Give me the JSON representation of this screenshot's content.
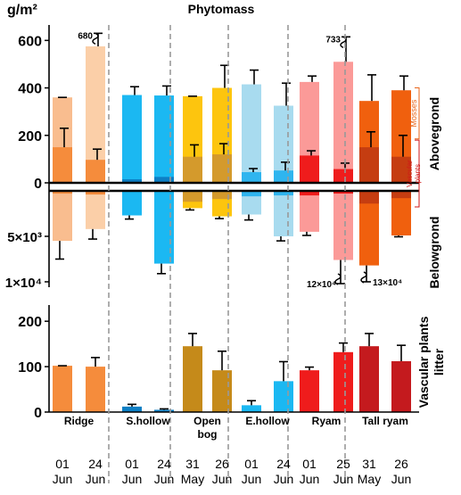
{
  "chart_data": {
    "type": "bar",
    "title": "Phytomass",
    "unit_label": "g/m²",
    "groups": [
      {
        "name": "Ridge",
        "sampling": [
          {
            "day": "01",
            "month": "Jun"
          },
          {
            "day": "24",
            "month": "Jun"
          }
        ]
      },
      {
        "name": "S.hollow",
        "sampling": [
          {
            "day": "01",
            "month": "Jun"
          },
          {
            "day": "24",
            "month": "Jun"
          }
        ]
      },
      {
        "name": "Open bog",
        "name_lines": [
          "Open",
          "bog"
        ],
        "sampling": [
          {
            "day": "31",
            "month": "May"
          },
          {
            "day": "26",
            "month": "Jun"
          }
        ]
      },
      {
        "name": "E.hollow",
        "sampling": [
          {
            "day": "01",
            "month": "Jun"
          },
          {
            "day": "24",
            "month": "Jun"
          }
        ]
      },
      {
        "name": "Ryam",
        "sampling": [
          {
            "day": "01",
            "month": "Jun"
          },
          {
            "day": "25",
            "month": "Jun"
          }
        ]
      },
      {
        "name": "Tall ryam",
        "sampling": [
          {
            "day": "31",
            "month": "May"
          },
          {
            "day": "26",
            "month": "Jun"
          }
        ]
      }
    ],
    "aboveground": {
      "ylabel": "Abovegrond",
      "yticks": [
        0,
        200,
        400,
        600
      ],
      "ylim": [
        0,
        620
      ],
      "annotations": {
        "mosses": "Mosses",
        "vascular_plants": "Vascular plants"
      },
      "bars": [
        {
          "total": 360,
          "total_err": 0,
          "vascular": 150,
          "vascular_err": 80,
          "total_color": "#f9bd8f",
          "vascular_color": "#f58c3c"
        },
        {
          "total": 575,
          "total_err": 55,
          "vascular": 97,
          "vascular_err": 45,
          "total_color": "#fbcfa8",
          "vascular_color": "#f58c3c",
          "outlier": "680"
        },
        {
          "total": 370,
          "total_err": 35,
          "vascular": 15,
          "vascular_err": 0,
          "total_color": "#1bb8f2",
          "vascular_color": "#0d7fc4"
        },
        {
          "total": 368,
          "total_err": 40,
          "vascular": 25,
          "vascular_err": 0,
          "total_color": "#1bb8f2",
          "vascular_color": "#0d7fc4"
        },
        {
          "total": 365,
          "total_err": 0,
          "vascular": 110,
          "vascular_err": 50,
          "total_color": "#fdc50e",
          "vascular_color": "#d49a2c"
        },
        {
          "total": 400,
          "total_err": 95,
          "vascular": 120,
          "vascular_err": 45,
          "total_color": "#fdc50e",
          "vascular_color": "#d49a2c"
        },
        {
          "total": 415,
          "total_err": 60,
          "vascular": 45,
          "vascular_err": 15,
          "total_color": "#a8dbef",
          "vascular_color": "#2fb5ef"
        },
        {
          "total": 325,
          "total_err": 95,
          "vascular": 52,
          "vascular_err": 35,
          "total_color": "#a8dbef",
          "vascular_color": "#2fb5ef"
        },
        {
          "total": 425,
          "total_err": 25,
          "vascular": 115,
          "vascular_err": 20,
          "total_color": "#fb9a98",
          "vascular_color": "#ef1c1c"
        },
        {
          "total": 510,
          "total_err": 105,
          "vascular": 58,
          "vascular_err": 25,
          "total_color": "#fb9a98",
          "vascular_color": "#ef1c1c",
          "outlier": "733"
        },
        {
          "total": 345,
          "total_err": 110,
          "vascular": 150,
          "vascular_err": 65,
          "total_color": "#f0600e",
          "vascular_color": "#c53d11"
        },
        {
          "total": 390,
          "total_err": 60,
          "vascular": 110,
          "vascular_err": 90,
          "total_color": "#f0600e",
          "vascular_color": "#c53d11"
        }
      ]
    },
    "belowground": {
      "ylabel": "Belowgrond",
      "yticks": [
        {
          "value": 5000,
          "label": "5×10³"
        },
        {
          "value": 10000,
          "label": "1×10⁴"
        }
      ],
      "ylim": [
        0,
        10200
      ],
      "bars": [
        {
          "total": 5500,
          "total_err": 2000,
          "vascular": 300,
          "color": "#f9bd8f",
          "vascular_color": "#f58c3c"
        },
        {
          "total": 4200,
          "total_err": 1100,
          "vascular": 400,
          "color": "#fbcfa8",
          "vascular_color": "#f58c3c"
        },
        {
          "total": 2700,
          "total_err": 400,
          "vascular": 0,
          "color": "#1bb8f2",
          "vascular_color": "#0d7fc4"
        },
        {
          "total": 8000,
          "total_err": 1100,
          "vascular": 0,
          "color": "#1bb8f2",
          "vascular_color": "#0d7fc4"
        },
        {
          "total": 1900,
          "total_err": 200,
          "vascular": 1200,
          "color": "#fdc50e",
          "vascular_color": "#d49a2c"
        },
        {
          "total": 2800,
          "total_err": 250,
          "vascular": 900,
          "color": "#fdc50e",
          "vascular_color": "#d49a2c"
        },
        {
          "total": 2600,
          "total_err": 600,
          "vascular": 600,
          "color": "#a8dbef",
          "vascular_color": "#2fb5ef"
        },
        {
          "total": 5000,
          "total_err": 500,
          "vascular": 500,
          "color": "#a8dbef",
          "vascular_color": "#2fb5ef"
        },
        {
          "total": 4500,
          "total_err": 400,
          "vascular": 500,
          "color": "#fb9a98",
          "vascular_color": "#ef1c1c"
        },
        {
          "total": 7600,
          "total_err": 2600,
          "vascular": 300,
          "color": "#fb9a98",
          "vascular_color": "#ef1c1c",
          "outlier": "12×10⁴"
        },
        {
          "total": 8200,
          "total_err": 1800,
          "vascular": 1400,
          "color": "#f0600e",
          "vascular_color": "#c53d11",
          "outlier": "13×10⁴"
        },
        {
          "total": 4900,
          "total_err": 150,
          "vascular": 800,
          "color": "#f0600e",
          "vascular_color": "#c53d11"
        }
      ]
    },
    "litter": {
      "ylabel": "Vascular plants litter",
      "ylabel_lines": [
        "Vascular plants",
        "litter"
      ],
      "yticks": [
        0,
        100,
        200
      ],
      "ylim": [
        0,
        220
      ],
      "bars": [
        {
          "value": 102,
          "err": 0,
          "color": "#f58c3c"
        },
        {
          "value": 100,
          "err": 20,
          "color": "#f58c3c"
        },
        {
          "value": 12,
          "err": 5,
          "color": "#0d7fc4"
        },
        {
          "value": 5,
          "err": 2,
          "color": "#0d7fc4"
        },
        {
          "value": 145,
          "err": 28,
          "color": "#c58a1a"
        },
        {
          "value": 92,
          "err": 42,
          "color": "#c58a1a"
        },
        {
          "value": 15,
          "err": 10,
          "color": "#1bb8f2"
        },
        {
          "value": 68,
          "err": 43,
          "color": "#1bb8f2"
        },
        {
          "value": 92,
          "err": 7,
          "color": "#ef1c1c"
        },
        {
          "value": 132,
          "err": 20,
          "color": "#ef1c1c"
        },
        {
          "value": 145,
          "err": 28,
          "color": "#c41a1e"
        },
        {
          "value": 112,
          "err": 35,
          "color": "#c41a1e"
        }
      ]
    }
  }
}
